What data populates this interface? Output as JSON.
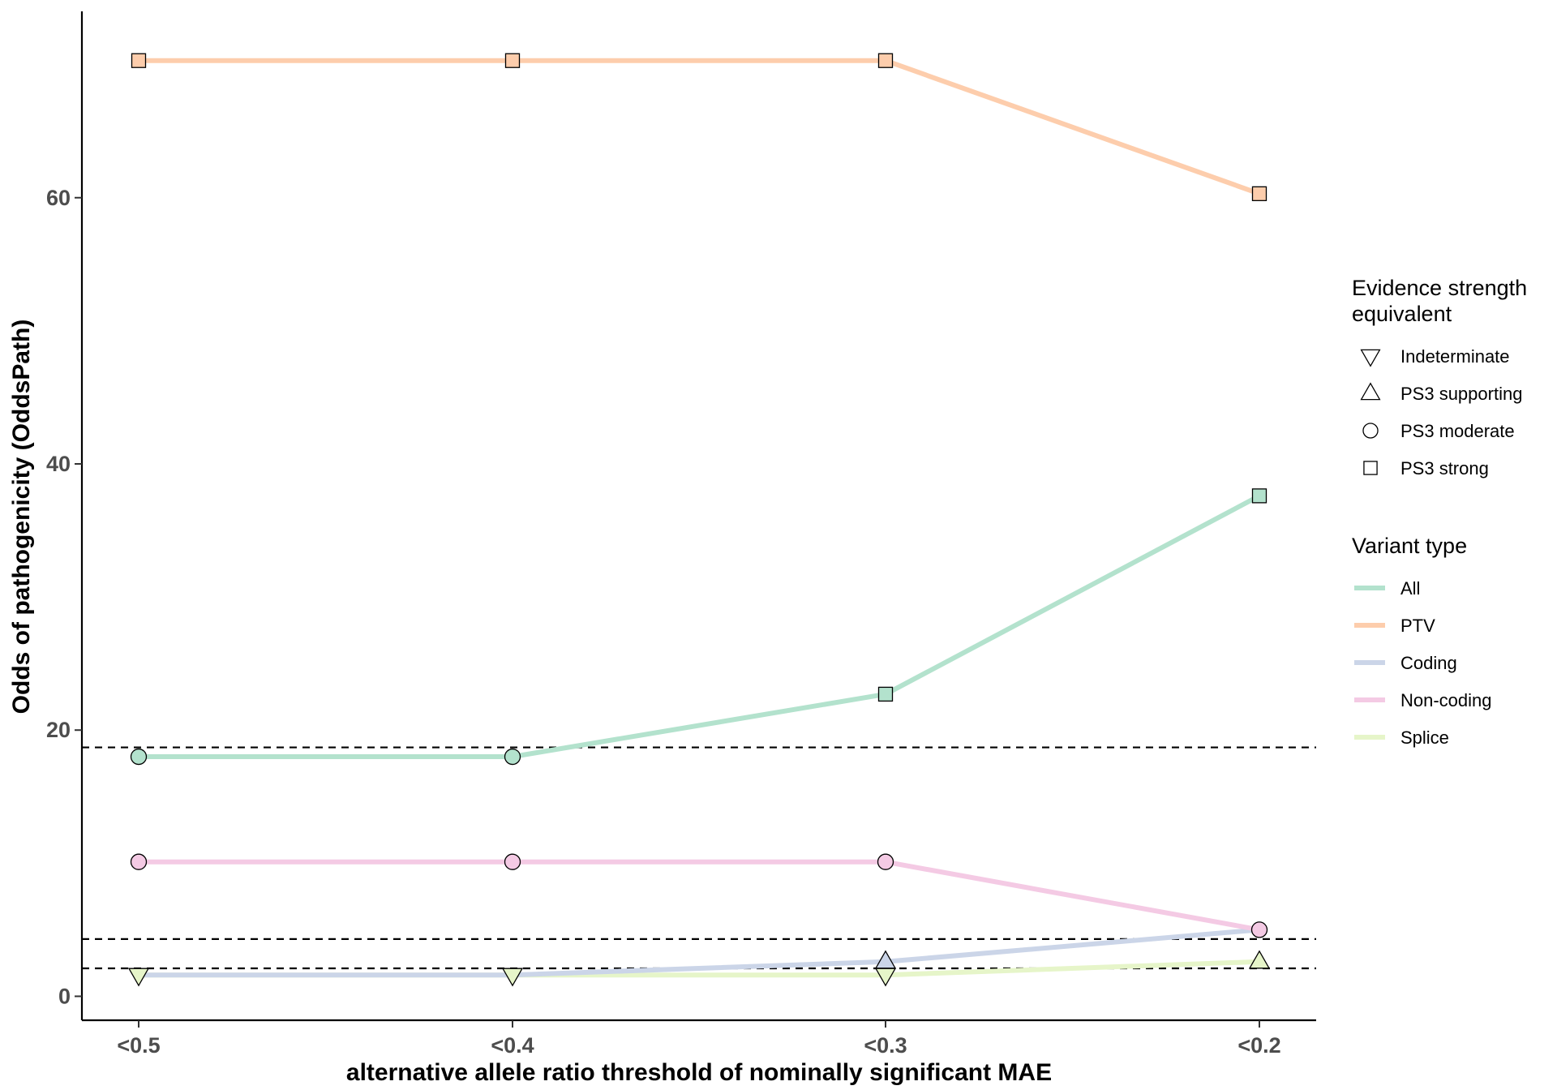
{
  "chart_data": {
    "type": "line",
    "title": "",
    "xlabel": "alternative allele ratio threshold of nominally significant MAE",
    "ylabel": "Odds of pathogenicity (OddsPath)",
    "categories": [
      "<0.5",
      "<0.4",
      "<0.3",
      "<0.2"
    ],
    "ylim": [
      -1.8,
      74
    ],
    "yticks": [
      0,
      20,
      40,
      60
    ],
    "grid": false,
    "reference_lines": [
      18.7,
      4.3,
      2.1
    ],
    "series": [
      {
        "name": "All",
        "color": "#b3e2cd",
        "values": [
          18,
          18,
          22.7,
          37.6
        ],
        "shapes": [
          "PS3 moderate",
          "PS3 moderate",
          "PS3 strong",
          "PS3 strong"
        ]
      },
      {
        "name": "PTV",
        "color": "#fdcdac",
        "values": [
          70.3,
          70.3,
          70.3,
          60.3
        ],
        "shapes": [
          "PS3 strong",
          "PS3 strong",
          "PS3 strong",
          "PS3 strong"
        ]
      },
      {
        "name": "Coding",
        "color": "#cbd5e8",
        "values": [
          1.6,
          1.6,
          2.6,
          5.0
        ],
        "shapes": [
          null,
          null,
          "PS3 supporting",
          null
        ]
      },
      {
        "name": "Non-coding",
        "color": "#f4cae4",
        "values": [
          10.1,
          10.1,
          10.1,
          5.0
        ],
        "shapes": [
          "PS3 moderate",
          "PS3 moderate",
          "PS3 moderate",
          "PS3 moderate"
        ]
      },
      {
        "name": "Splice",
        "color": "#e6f5c9",
        "values": [
          1.6,
          1.6,
          1.6,
          2.6
        ],
        "shapes": [
          "Indeterminate",
          "Indeterminate",
          "Indeterminate",
          "PS3 supporting"
        ]
      }
    ],
    "legend_position": "right",
    "shape_legend": {
      "title": [
        "Evidence strength",
        "equivalent"
      ],
      "items": [
        {
          "label": "Indeterminate",
          "shape": "triangle-down"
        },
        {
          "label": "PS3 supporting",
          "shape": "triangle-up"
        },
        {
          "label": "PS3 moderate",
          "shape": "circle"
        },
        {
          "label": "PS3 strong",
          "shape": "square"
        }
      ]
    },
    "color_legend": {
      "title": "Variant type",
      "items": [
        "All",
        "PTV",
        "Coding",
        "Non-coding",
        "Splice"
      ]
    }
  }
}
